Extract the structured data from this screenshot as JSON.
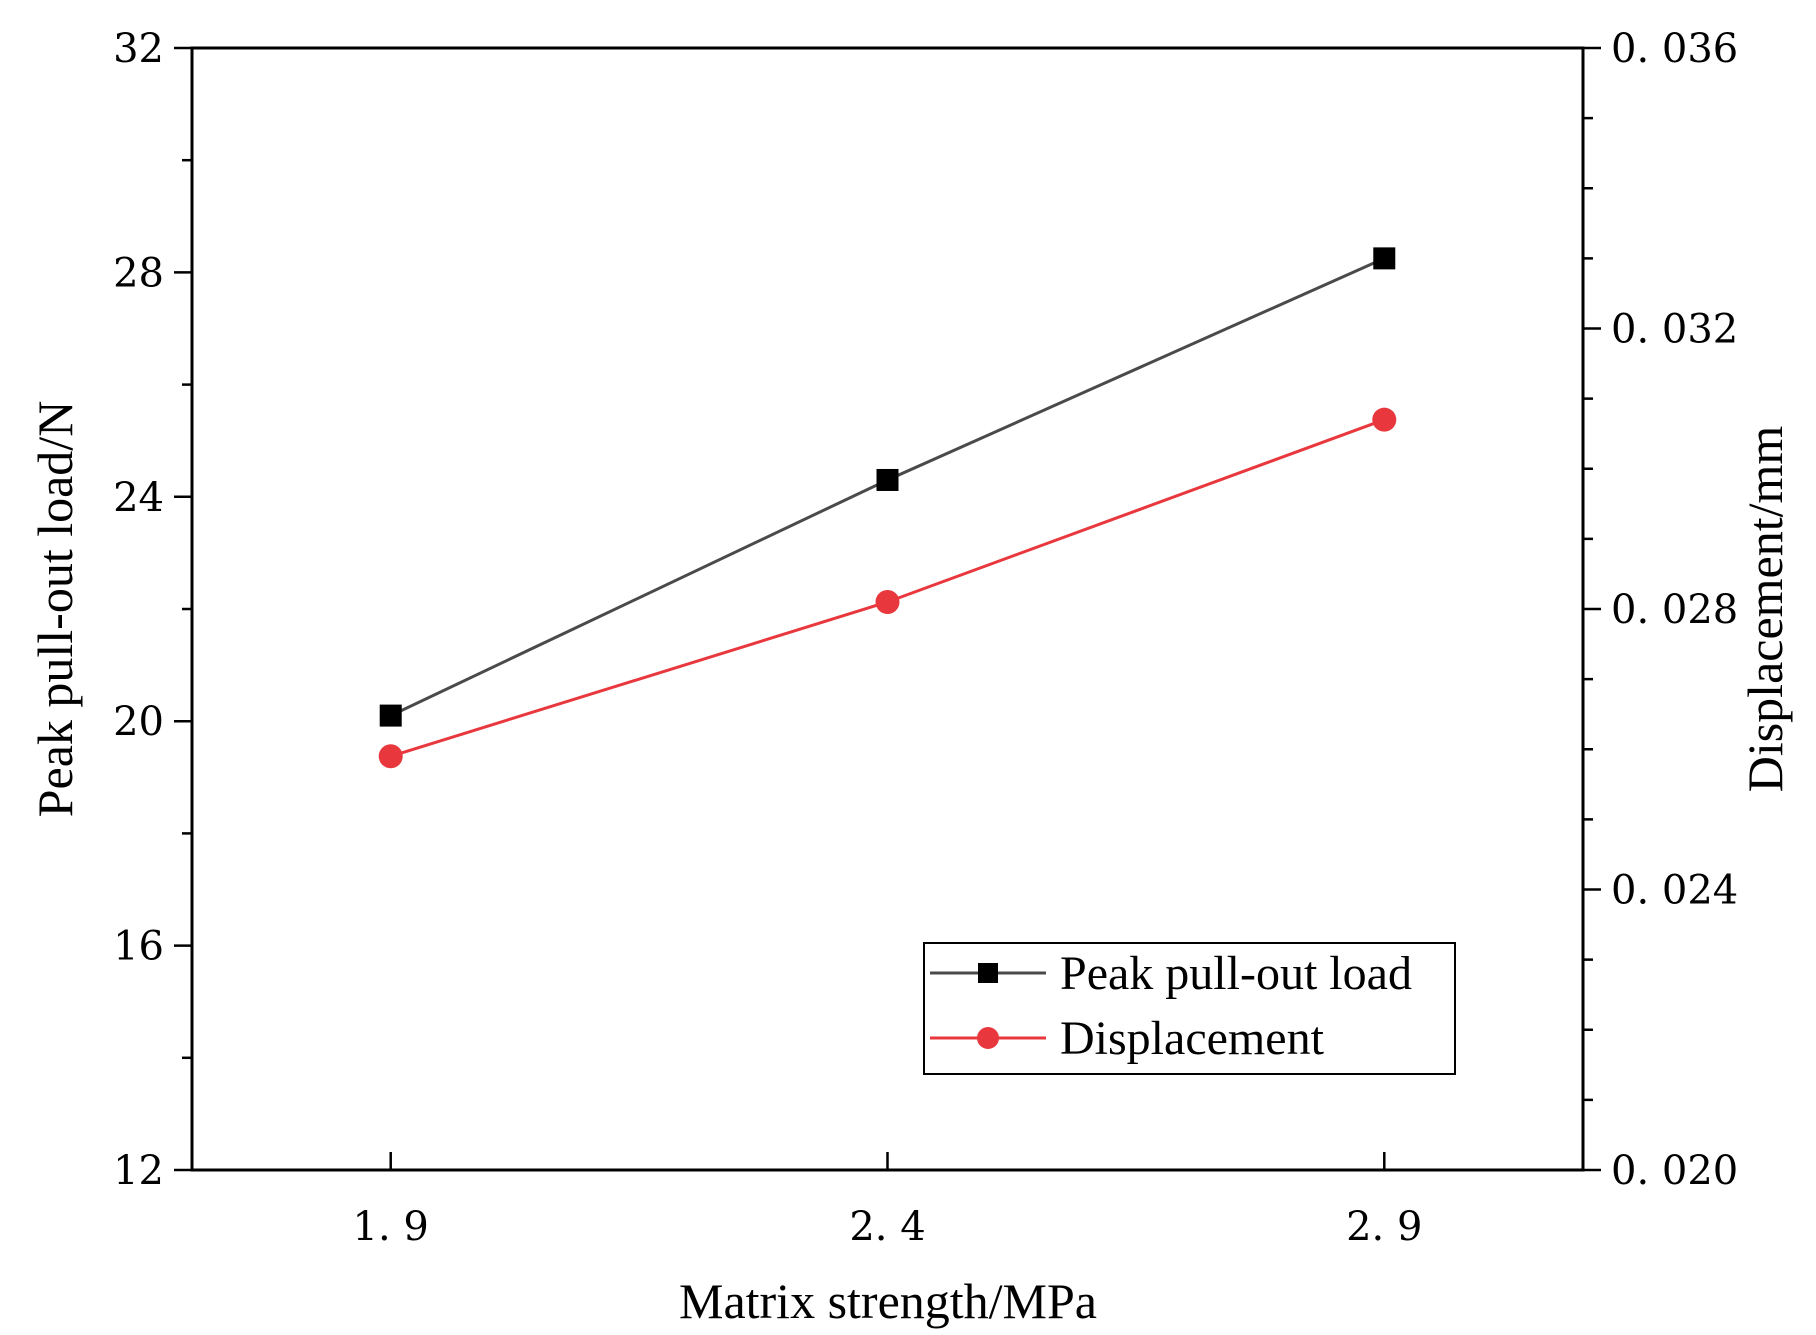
{
  "chart_data": {
    "type": "line",
    "title": "",
    "xlabel": "Matrix strength/MPa",
    "ylabel": "Peak pull-out load/N",
    "y2label": "Displacement/mm",
    "x": [
      "1. 9",
      "2. 4",
      "2. 9"
    ],
    "x_values": [
      1.9,
      2.4,
      2.9
    ],
    "xlim": [
      1.7,
      3.1
    ],
    "ylim": [
      12,
      32
    ],
    "y2lim": [
      0.02,
      0.036
    ],
    "y_ticks": [
      12,
      16,
      20,
      24,
      28,
      32
    ],
    "y_tick_labels": [
      "12",
      "16",
      "20",
      "24",
      "28",
      "32"
    ],
    "y2_ticks": [
      0.02,
      0.024,
      0.028,
      0.032,
      0.036
    ],
    "y2_tick_labels": [
      "0. 020",
      "0. 024",
      "0. 028",
      "0. 032",
      "0. 036"
    ],
    "grid": false,
    "legend_position": "bottom-right",
    "series": [
      {
        "name": "Peak pull-out load",
        "axis": "left",
        "marker": "square",
        "color": "#4a4a4a",
        "marker_color": "#000000",
        "values": [
          20.1,
          24.3,
          28.25
        ]
      },
      {
        "name": "Displacement",
        "axis": "right",
        "marker": "circle",
        "color": "#e8383d",
        "marker_color": "#e8383d",
        "values": [
          0.0259,
          0.0281,
          0.0307
        ]
      }
    ]
  }
}
